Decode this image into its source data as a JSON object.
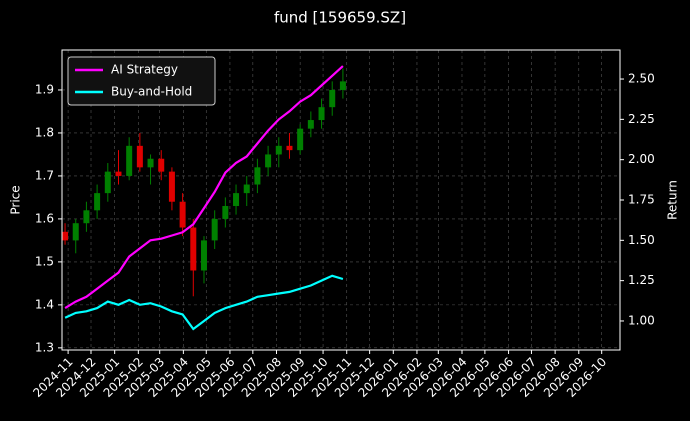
{
  "chart_data": {
    "type": "candlestick",
    "title": "fund [159659.SZ]",
    "y_label": "Price",
    "y2_label": "Return",
    "x": [
      "2024-10-28",
      "2024-11-11",
      "2024-11-25",
      "2024-12-09",
      "2024-12-23",
      "2025-01-06",
      "2025-01-20",
      "2025-02-03",
      "2025-02-17",
      "2025-03-03",
      "2025-03-17",
      "2025-03-31",
      "2025-04-14",
      "2025-04-28",
      "2025-05-12",
      "2025-05-26",
      "2025-06-09",
      "2025-06-23",
      "2025-07-07",
      "2025-07-21",
      "2025-08-04",
      "2025-08-18",
      "2025-09-01",
      "2025-09-15",
      "2025-09-29",
      "2025-10-13",
      "2025-10-27"
    ],
    "open": [
      1.57,
      1.55,
      1.59,
      1.62,
      1.66,
      1.71,
      1.7,
      1.77,
      1.72,
      1.74,
      1.71,
      1.64,
      1.58,
      1.48,
      1.55,
      1.6,
      1.63,
      1.66,
      1.68,
      1.72,
      1.75,
      1.77,
      1.76,
      1.81,
      1.83,
      1.86,
      1.9
    ],
    "high": [
      1.59,
      1.6,
      1.64,
      1.68,
      1.73,
      1.76,
      1.79,
      1.8,
      1.75,
      1.76,
      1.72,
      1.66,
      1.6,
      1.56,
      1.62,
      1.65,
      1.68,
      1.7,
      1.74,
      1.77,
      1.79,
      1.8,
      1.82,
      1.85,
      1.88,
      1.92,
      1.95
    ],
    "low": [
      1.54,
      1.52,
      1.57,
      1.6,
      1.64,
      1.68,
      1.69,
      1.71,
      1.68,
      1.69,
      1.62,
      1.56,
      1.42,
      1.45,
      1.53,
      1.58,
      1.61,
      1.63,
      1.66,
      1.7,
      1.72,
      1.74,
      1.75,
      1.79,
      1.81,
      1.84,
      1.88
    ],
    "close": [
      1.55,
      1.59,
      1.62,
      1.66,
      1.71,
      1.7,
      1.77,
      1.72,
      1.74,
      1.71,
      1.64,
      1.58,
      1.48,
      1.55,
      1.6,
      1.63,
      1.66,
      1.68,
      1.72,
      1.75,
      1.77,
      1.76,
      1.81,
      1.83,
      1.86,
      1.9,
      1.92
    ],
    "up_color": "#008000",
    "down_color": "#e00000",
    "series": [
      {
        "name": "AI Strategy",
        "color": "#ff00ff",
        "axis": "y2",
        "values": [
          1.08,
          1.12,
          1.15,
          1.2,
          1.25,
          1.3,
          1.4,
          1.45,
          1.5,
          1.51,
          1.53,
          1.55,
          1.6,
          1.7,
          1.8,
          1.92,
          1.98,
          2.02,
          2.1,
          2.18,
          2.25,
          2.3,
          2.36,
          2.4,
          2.46,
          2.52,
          2.58
        ]
      },
      {
        "name": "Buy-and-Hold",
        "color": "#00ffff",
        "axis": "y2",
        "values": [
          1.02,
          1.05,
          1.06,
          1.08,
          1.12,
          1.1,
          1.13,
          1.1,
          1.11,
          1.09,
          1.06,
          1.04,
          0.95,
          1.0,
          1.05,
          1.08,
          1.1,
          1.12,
          1.15,
          1.16,
          1.17,
          1.18,
          1.2,
          1.22,
          1.25,
          1.28,
          1.26
        ]
      }
    ],
    "xlim": [
      "2024-10-24",
      "2026-10-25"
    ],
    "xticks": [
      {
        "value": "2024-11-01",
        "label": "2024-11"
      },
      {
        "value": "2024-12-01",
        "label": "2024-12"
      },
      {
        "value": "2025-01-01",
        "label": "2025-01"
      },
      {
        "value": "2025-02-01",
        "label": "2025-02"
      },
      {
        "value": "2025-03-01",
        "label": "2025-03"
      },
      {
        "value": "2025-04-01",
        "label": "2025-04"
      },
      {
        "value": "2025-05-01",
        "label": "2025-05"
      },
      {
        "value": "2025-06-01",
        "label": "2025-06"
      },
      {
        "value": "2025-07-01",
        "label": "2025-07"
      },
      {
        "value": "2025-08-01",
        "label": "2025-08"
      },
      {
        "value": "2025-09-01",
        "label": "2025-09"
      },
      {
        "value": "2025-10-01",
        "label": "2025-10"
      },
      {
        "value": "2025-11-01",
        "label": "2025-11"
      },
      {
        "value": "2025-12-01",
        "label": "2025-12"
      },
      {
        "value": "2026-01-01",
        "label": "2026-01"
      },
      {
        "value": "2026-02-01",
        "label": "2026-02"
      },
      {
        "value": "2026-03-01",
        "label": "2026-03"
      },
      {
        "value": "2026-04-01",
        "label": "2026-04"
      },
      {
        "value": "2026-05-01",
        "label": "2026-05"
      },
      {
        "value": "2026-06-01",
        "label": "2026-06"
      },
      {
        "value": "2026-07-01",
        "label": "2026-07"
      },
      {
        "value": "2026-08-01",
        "label": "2026-08"
      },
      {
        "value": "2026-09-01",
        "label": "2026-09"
      },
      {
        "value": "2026-10-01",
        "label": "2026-10"
      }
    ],
    "ylim": [
      1.295,
      1.993
    ],
    "yticks": [
      1.3,
      1.4,
      1.5,
      1.6,
      1.7,
      1.8,
      1.9
    ],
    "y2lim": [
      0.82,
      2.68
    ],
    "y2ticks": [
      {
        "value": 1.0,
        "label": "1.00"
      },
      {
        "value": 1.25,
        "label": "1.25"
      },
      {
        "value": 1.5,
        "label": "1.50"
      },
      {
        "value": 1.75,
        "label": "1.75"
      },
      {
        "value": 2.0,
        "label": "2.00"
      },
      {
        "value": 2.25,
        "label": "2.25"
      },
      {
        "value": 2.5,
        "label": "2.50"
      }
    ],
    "grid": true,
    "legend_loc": "upper left"
  }
}
